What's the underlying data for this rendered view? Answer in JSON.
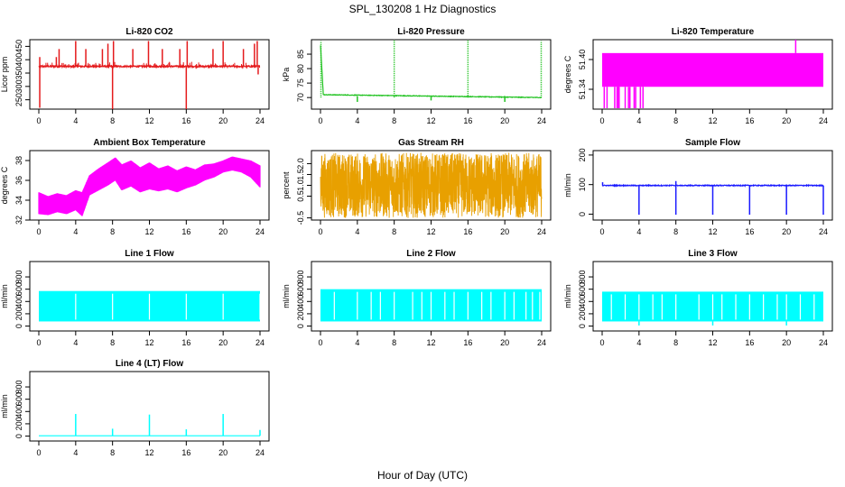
{
  "figure": {
    "title": "SPL_130208  1 Hz Diagnostics",
    "xlabel": "Hour of Day (UTC)",
    "xticks": [
      "0",
      "4",
      "8",
      "12",
      "16",
      "20",
      "24"
    ]
  },
  "colors": {
    "red": "#e41a1c",
    "green": "#22c322",
    "magenta": "#ff00ff",
    "orange": "#e8a000",
    "blue": "#1a1aff",
    "cyan": "#00ffff",
    "axis": "#000000"
  },
  "chart_data": [
    {
      "id": "co2",
      "type": "line",
      "title": "Li-820 CO2",
      "ylabel": "Licor ppm",
      "color": "red",
      "xlim": [
        0,
        24
      ],
      "ylim": [
        215,
        475
      ],
      "yticks": [
        "250",
        "300",
        "350",
        "400",
        "450"
      ],
      "series": {
        "style": "baseline-spikes",
        "base": 375,
        "noise": 6,
        "dips": [
          [
            0.1,
            220
          ],
          [
            8.0,
            215
          ],
          [
            16.0,
            215
          ],
          [
            23.8,
            345
          ]
        ],
        "spikes": [
          [
            0.1,
            410
          ],
          [
            1.9,
            410
          ],
          [
            2.2,
            440
          ],
          [
            4.0,
            470
          ],
          [
            5.1,
            440
          ],
          [
            6.9,
            440
          ],
          [
            7.5,
            460
          ],
          [
            8.1,
            470
          ],
          [
            10.2,
            440
          ],
          [
            11.9,
            470
          ],
          [
            13.4,
            440
          ],
          [
            15.3,
            440
          ],
          [
            16.1,
            470
          ],
          [
            18.9,
            440
          ],
          [
            20.0,
            470
          ],
          [
            22.2,
            440
          ],
          [
            23.4,
            460
          ],
          [
            23.7,
            470
          ]
        ]
      }
    },
    {
      "id": "pressure",
      "type": "line",
      "title": "Li-820 Pressure",
      "ylabel": "kPa",
      "color": "green",
      "xlim": [
        0,
        24
      ],
      "ylim": [
        66,
        90
      ],
      "yticks": [
        "70",
        "75",
        "80",
        "85"
      ],
      "series": {
        "style": "pressure",
        "start": 71.0,
        "end": 70.0,
        "spikes": [
          [
            0.05,
            89.5
          ],
          [
            8.0,
            90
          ],
          [
            16.0,
            90
          ],
          [
            23.95,
            89.5
          ]
        ],
        "small_dips": [
          [
            4.0,
            68.5
          ],
          [
            12.0,
            69
          ],
          [
            20.0,
            68.5
          ]
        ]
      }
    },
    {
      "id": "li820-temp",
      "type": "area",
      "title": "Li-820 Temperature",
      "ylabel": "degrees C",
      "color": "magenta",
      "xlim": [
        0,
        24
      ],
      "ylim": [
        51.3,
        51.44
      ],
      "yticks": [
        "51.34",
        "51.40"
      ],
      "series": {
        "style": "band",
        "low": 51.345,
        "high": 51.413,
        "spike": [
          21.0,
          51.44
        ],
        "dips_until_hour": 4.5,
        "dip_floor": 51.3
      }
    },
    {
      "id": "box-temp",
      "type": "line",
      "title": "Ambient Box Temperature",
      "ylabel": "degrees C",
      "color": "magenta",
      "xlim": [
        0,
        24
      ],
      "ylim": [
        32,
        39
      ],
      "yticks": [
        "32",
        "34",
        "36",
        "38"
      ],
      "series": {
        "style": "envelope",
        "upper": [
          [
            0,
            34.8
          ],
          [
            1,
            34.4
          ],
          [
            2,
            34.7
          ],
          [
            3,
            34.5
          ],
          [
            4,
            35.0
          ],
          [
            4.7,
            34.8
          ],
          [
            5.5,
            36.5
          ],
          [
            6.5,
            37.2
          ],
          [
            7.5,
            37.8
          ],
          [
            8.3,
            38.3
          ],
          [
            9,
            37.6
          ],
          [
            10,
            38.0
          ],
          [
            11,
            37.3
          ],
          [
            12,
            37.8
          ],
          [
            13,
            37.2
          ],
          [
            14,
            37.5
          ],
          [
            15,
            37.0
          ],
          [
            16,
            37.4
          ],
          [
            17,
            37.1
          ],
          [
            18,
            37.6
          ],
          [
            19,
            37.7
          ],
          [
            20,
            38.0
          ],
          [
            21,
            38.4
          ],
          [
            22,
            38.2
          ],
          [
            23,
            38.0
          ],
          [
            24,
            37.5
          ]
        ],
        "lower": [
          [
            0,
            32.6
          ],
          [
            1,
            32.5
          ],
          [
            2,
            32.8
          ],
          [
            3,
            32.6
          ],
          [
            4,
            33.0
          ],
          [
            4.7,
            32.4
          ],
          [
            5.5,
            34.5
          ],
          [
            6.5,
            35.0
          ],
          [
            7.5,
            35.5
          ],
          [
            8.3,
            36.0
          ],
          [
            9,
            35.0
          ],
          [
            10,
            35.4
          ],
          [
            11,
            34.8
          ],
          [
            12,
            35.1
          ],
          [
            13,
            34.9
          ],
          [
            14,
            35.1
          ],
          [
            15,
            34.8
          ],
          [
            16,
            35.2
          ],
          [
            17,
            35.5
          ],
          [
            18,
            36.0
          ],
          [
            19,
            36.3
          ],
          [
            20,
            36.8
          ],
          [
            21,
            37.0
          ],
          [
            22,
            36.8
          ],
          [
            23,
            36.3
          ],
          [
            24,
            35.3
          ]
        ],
        "sawtooth_periods": 10
      }
    },
    {
      "id": "rh",
      "type": "scatter",
      "title": "Gas Stream RH",
      "ylabel": "percent",
      "color": "orange",
      "xlim": [
        0,
        24
      ],
      "ylim": [
        -0.6,
        2.6
      ],
      "yticks": [
        "-0.5",
        "0.5",
        "1.0",
        "1.5",
        "2.0"
      ],
      "series": {
        "style": "noise-band",
        "low": -0.5,
        "high": 2.5,
        "center": 1.0
      }
    },
    {
      "id": "sample-flow",
      "type": "line",
      "title": "Sample Flow",
      "ylabel": "ml/min",
      "color": "blue",
      "xlim": [
        0,
        24
      ],
      "ylim": [
        -20,
        215
      ],
      "yticks": [
        "0",
        "100",
        "200"
      ],
      "series": {
        "style": "baseline-spikes",
        "base": 97,
        "noise": 3,
        "dips": [
          [
            4.0,
            -2
          ],
          [
            8.0,
            -2
          ],
          [
            12.0,
            -2
          ],
          [
            16.0,
            -2
          ],
          [
            20.0,
            -2
          ],
          [
            24.0,
            -2
          ]
        ],
        "spikes": [
          [
            0.05,
            108
          ],
          [
            8.0,
            112
          ]
        ]
      }
    },
    {
      "id": "line1",
      "type": "area",
      "title": "Line 1 Flow",
      "ylabel": "ml/min",
      "color": "cyan",
      "xlim": [
        0,
        24
      ],
      "ylim": [
        -80,
        1050
      ],
      "yticks": [
        "0",
        "200",
        "400",
        "600",
        "800"
      ],
      "series": {
        "style": "band",
        "low": 75,
        "high": 570,
        "gaps": [
          4,
          8,
          12,
          16,
          20,
          24
        ]
      }
    },
    {
      "id": "line2",
      "type": "area",
      "title": "Line 2 Flow",
      "ylabel": "ml/min",
      "color": "cyan",
      "xlim": [
        0,
        24
      ],
      "ylim": [
        -80,
        1050
      ],
      "yticks": [
        "0",
        "200",
        "400",
        "600",
        "800"
      ],
      "series": {
        "style": "band",
        "low": 75,
        "high": 600,
        "gaps": [
          1.5,
          4,
          5.5,
          6.5,
          8,
          10,
          11,
          12,
          13.5,
          14.5,
          16,
          17.5,
          18.5,
          20,
          21,
          22.3,
          23,
          23.8
        ]
      }
    },
    {
      "id": "line3",
      "type": "area",
      "title": "Line 3 Flow",
      "ylabel": "ml/min",
      "color": "cyan",
      "xlim": [
        0,
        24
      ],
      "ylim": [
        -80,
        1050
      ],
      "yticks": [
        "0",
        "200",
        "400",
        "600",
        "800"
      ],
      "series": {
        "style": "band",
        "low": 75,
        "high": 560,
        "gaps": [
          1.0,
          2.5,
          4.0,
          5.5,
          6.5,
          8,
          10.5,
          12,
          13,
          14.5,
          16,
          17.5,
          19,
          20,
          21.5,
          23
        ],
        "dips": [
          [
            4.0,
            10
          ],
          [
            12.0,
            10
          ],
          [
            20.0,
            10
          ]
        ]
      }
    },
    {
      "id": "line4",
      "type": "line",
      "title": "Line 4 (LT) Flow",
      "ylabel": "ml/min",
      "color": "cyan",
      "xlim": [
        0,
        24
      ],
      "ylim": [
        -80,
        1050
      ],
      "yticks": [
        "0",
        "200",
        "400",
        "600",
        "800"
      ],
      "series": {
        "style": "baseline-spikes",
        "base": 5,
        "noise": 0,
        "spikes": [
          [
            4.0,
            360
          ],
          [
            8.0,
            120
          ],
          [
            12.0,
            350
          ],
          [
            16.0,
            110
          ],
          [
            20.0,
            360
          ],
          [
            24.0,
            100
          ]
        ]
      }
    }
  ]
}
